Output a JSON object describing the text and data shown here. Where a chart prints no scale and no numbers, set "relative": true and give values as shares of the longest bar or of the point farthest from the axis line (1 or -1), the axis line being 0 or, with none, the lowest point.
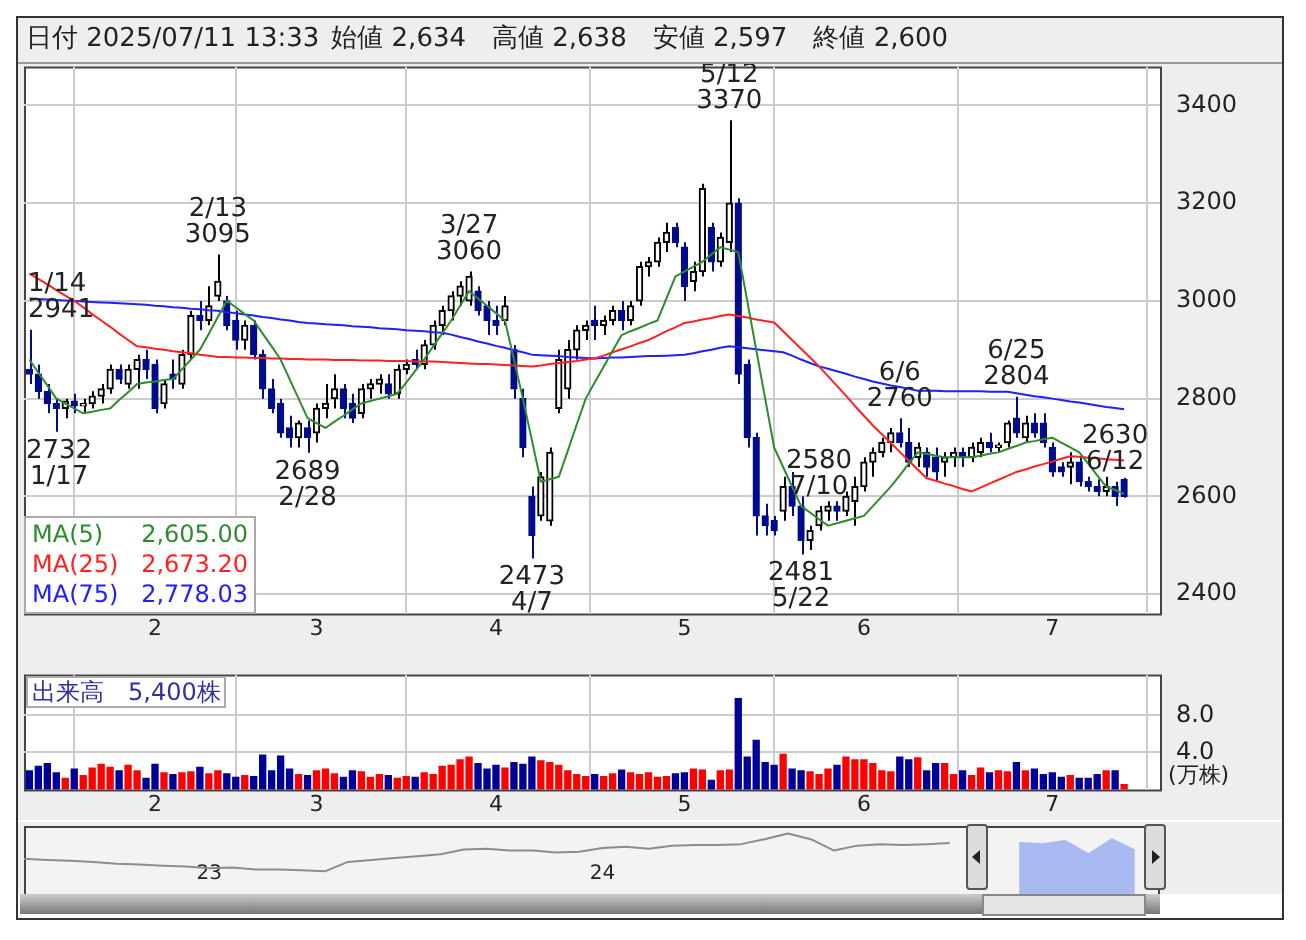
{
  "chart_data": [
    {
      "type": "candlestick",
      "title": "日付 2025/07/11 13:33",
      "subtitle": "始値 2,634　高値 2,638　安値 2,597　終値 2,600",
      "categories": [
        null,
        null,
        null,
        null,
        null,
        null,
        null,
        null,
        null,
        null,
        null,
        null,
        null,
        null,
        "2",
        null,
        null,
        null,
        null,
        null,
        null,
        null,
        null,
        null,
        null,
        null,
        null,
        null,
        null,
        null,
        null,
        null,
        "3",
        null,
        null,
        null,
        null,
        null,
        null,
        null,
        null,
        null,
        null,
        null,
        null,
        null,
        null,
        null,
        null,
        null,
        null,
        null,
        "4",
        null,
        null,
        null,
        null,
        null,
        null,
        null,
        null,
        null,
        null,
        null,
        null,
        null,
        null,
        null,
        null,
        null,
        null,
        null,
        null,
        "5",
        null,
        null,
        null,
        null,
        null,
        null,
        null,
        null,
        null,
        null,
        null,
        null,
        null,
        null,
        null,
        null,
        null,
        null,
        null,
        "6",
        null,
        null,
        null,
        null,
        null,
        null,
        null,
        null,
        null,
        null,
        null,
        null,
        null,
        null,
        null,
        null,
        null,
        null,
        null,
        null,
        "7",
        null,
        null,
        null,
        null,
        null,
        null,
        null,
        null
      ],
      "ohlc": [
        [
          2860,
          2941,
          2830,
          2850
        ],
        [
          2850,
          2870,
          2800,
          2815
        ],
        [
          2815,
          2830,
          2770,
          2790
        ],
        [
          2790,
          2800,
          2732,
          2780
        ],
        [
          2780,
          2800,
          2760,
          2795
        ],
        [
          2795,
          2810,
          2770,
          2785
        ],
        [
          2785,
          2800,
          2770,
          2790
        ],
        [
          2790,
          2815,
          2780,
          2805
        ],
        [
          2805,
          2830,
          2790,
          2820
        ],
        [
          2820,
          2870,
          2810,
          2860
        ],
        [
          2860,
          2870,
          2830,
          2840
        ],
        [
          2830,
          2870,
          2820,
          2860
        ],
        [
          2860,
          2890,
          2820,
          2880
        ],
        [
          2880,
          2900,
          2840,
          2860
        ],
        [
          2870,
          2880,
          2770,
          2780
        ],
        [
          2790,
          2840,
          2780,
          2830
        ],
        [
          2850,
          2880,
          2820,
          2840
        ],
        [
          2830,
          2900,
          2820,
          2890
        ],
        [
          2890,
          2980,
          2880,
          2970
        ],
        [
          2970,
          3000,
          2940,
          2960
        ],
        [
          2960,
          3030,
          2950,
          2990
        ],
        [
          3010,
          3095,
          3000,
          3040
        ],
        [
          3000,
          3010,
          2940,
          2950
        ],
        [
          2960,
          2980,
          2900,
          2920
        ],
        [
          2920,
          2960,
          2900,
          2950
        ],
        [
          2950,
          2960,
          2880,
          2890
        ],
        [
          2890,
          2900,
          2800,
          2820
        ],
        [
          2820,
          2840,
          2770,
          2780
        ],
        [
          2790,
          2800,
          2720,
          2730
        ],
        [
          2740,
          2765,
          2700,
          2720
        ],
        [
          2720,
          2755,
          2700,
          2750
        ],
        [
          2740,
          2755,
          2689,
          2720
        ],
        [
          2730,
          2790,
          2710,
          2780
        ],
        [
          2780,
          2830,
          2760,
          2790
        ],
        [
          2800,
          2850,
          2780,
          2820
        ],
        [
          2820,
          2830,
          2760,
          2780
        ],
        [
          2790,
          2810,
          2750,
          2760
        ],
        [
          2770,
          2830,
          2760,
          2820
        ],
        [
          2820,
          2840,
          2800,
          2830
        ],
        [
          2830,
          2850,
          2810,
          2840
        ],
        [
          2830,
          2850,
          2800,
          2810
        ],
        [
          2810,
          2870,
          2800,
          2860
        ],
        [
          2860,
          2880,
          2850,
          2870
        ],
        [
          2880,
          2900,
          2860,
          2870
        ],
        [
          2870,
          2920,
          2860,
          2910
        ],
        [
          2910,
          2960,
          2900,
          2950
        ],
        [
          2950,
          2990,
          2930,
          2980
        ],
        [
          2980,
          3020,
          2960,
          3010
        ],
        [
          3010,
          3040,
          2990,
          3030
        ],
        [
          3000,
          3060,
          2990,
          3050
        ],
        [
          3020,
          3030,
          2970,
          2980
        ],
        [
          2990,
          3000,
          2930,
          2960
        ],
        [
          2960,
          2990,
          2930,
          2950
        ],
        [
          2960,
          3010,
          2950,
          2990
        ],
        [
          2900,
          2910,
          2800,
          2820
        ],
        [
          2800,
          2820,
          2680,
          2700
        ],
        [
          2600,
          2620,
          2473,
          2520
        ],
        [
          2560,
          2650,
          2550,
          2640
        ],
        [
          2550,
          2700,
          2540,
          2690
        ],
        [
          2780,
          2900,
          2770,
          2880
        ],
        [
          2820,
          2920,
          2800,
          2900
        ],
        [
          2900,
          2950,
          2880,
          2940
        ],
        [
          2940,
          2960,
          2920,
          2950
        ],
        [
          2960,
          2990,
          2920,
          2950
        ],
        [
          2950,
          2970,
          2930,
          2960
        ],
        [
          2960,
          2990,
          2950,
          2980
        ],
        [
          2980,
          3000,
          2940,
          2960
        ],
        [
          2960,
          3000,
          2950,
          2990
        ],
        [
          3000,
          3080,
          2990,
          3070
        ],
        [
          3070,
          3090,
          3050,
          3080
        ],
        [
          3080,
          3130,
          3070,
          3120
        ],
        [
          3120,
          3160,
          3100,
          3140
        ],
        [
          3150,
          3160,
          3110,
          3120
        ],
        [
          3110,
          3120,
          3000,
          3030
        ],
        [
          3040,
          3080,
          3020,
          3060
        ],
        [
          3060,
          3240,
          3050,
          3230
        ],
        [
          3150,
          3160,
          3060,
          3080
        ],
        [
          3080,
          3140,
          3070,
          3130
        ],
        [
          3120,
          3370,
          3100,
          3200
        ],
        [
          3200,
          3210,
          2830,
          2850
        ],
        [
          2870,
          2880,
          2700,
          2720
        ],
        [
          2720,
          2730,
          2520,
          2560
        ],
        [
          2560,
          2585,
          2520,
          2540
        ],
        [
          2550,
          2560,
          2520,
          2530
        ],
        [
          2570,
          2640,
          2550,
          2620
        ],
        [
          2620,
          2650,
          2560,
          2580
        ],
        [
          2580,
          2600,
          2481,
          2510
        ],
        [
          2510,
          2540,
          2490,
          2530
        ],
        [
          2540,
          2580,
          2530,
          2570
        ],
        [
          2570,
          2590,
          2550,
          2580
        ],
        [
          2580,
          2590,
          2550,
          2570
        ],
        [
          2570,
          2610,
          2560,
          2600
        ],
        [
          2590,
          2640,
          2540,
          2620
        ],
        [
          2620,
          2680,
          2610,
          2670
        ],
        [
          2670,
          2700,
          2640,
          2690
        ],
        [
          2690,
          2720,
          2680,
          2710
        ],
        [
          2710,
          2740,
          2690,
          2730
        ],
        [
          2730,
          2760,
          2700,
          2710
        ],
        [
          2710,
          2740,
          2660,
          2670
        ],
        [
          2680,
          2710,
          2660,
          2700
        ],
        [
          2690,
          2700,
          2640,
          2660
        ],
        [
          2680,
          2700,
          2630,
          2650
        ],
        [
          2670,
          2690,
          2640,
          2680
        ],
        [
          2680,
          2700,
          2660,
          2690
        ],
        [
          2690,
          2700,
          2660,
          2680
        ],
        [
          2680,
          2710,
          2670,
          2700
        ],
        [
          2690,
          2720,
          2680,
          2710
        ],
        [
          2710,
          2730,
          2690,
          2700
        ],
        [
          2700,
          2710,
          2690,
          2705
        ],
        [
          2710,
          2755,
          2700,
          2750
        ],
        [
          2760,
          2804,
          2720,
          2730
        ],
        [
          2720,
          2765,
          2710,
          2750
        ],
        [
          2750,
          2770,
          2720,
          2730
        ],
        [
          2750,
          2770,
          2700,
          2710
        ],
        [
          2700,
          2710,
          2640,
          2650
        ],
        [
          2660,
          2670,
          2640,
          2650
        ],
        [
          2660,
          2690,
          2625,
          2670
        ],
        [
          2670,
          2680,
          2620,
          2630
        ],
        [
          2630,
          2640,
          2610,
          2620
        ],
        [
          2620,
          2635,
          2600,
          2610
        ],
        [
          2610,
          2640,
          2600,
          2620
        ],
        [
          2620,
          2630,
          2580,
          2600
        ],
        [
          2634,
          2638,
          2597,
          2600
        ]
      ],
      "series": [
        {
          "type": "line",
          "name": "MA(5)",
          "color": "#2e8b2e",
          "values": [
            2880,
            2853,
            2827,
            2800,
            2790,
            2780,
            2770,
            2773,
            2777,
            2780,
            2797,
            2813,
            2830,
            2833,
            2835,
            2838,
            2840,
            2860,
            2880,
            2900,
            2933,
            2967,
            3000,
            2987,
            2973,
            2960,
            2933,
            2907,
            2880,
            2840,
            2800,
            2760,
            2750,
            2740,
            2753,
            2765,
            2778,
            2790,
            2795,
            2800,
            2805,
            2810,
            2833,
            2857,
            2880,
            2907,
            2933,
            2960,
            2990,
            3020,
            3005,
            2990,
            2975,
            2960,
            2880,
            2800,
            2715,
            2630,
            2635,
            2640,
            2693,
            2747,
            2800,
            2833,
            2865,
            2898,
            2930,
            2938,
            2945,
            2953,
            2960,
            3005,
            3050,
            3060,
            3070,
            3080,
            3095,
            3110,
            3105,
            3100,
            3000,
            2900,
            2800,
            2700,
            2660,
            2620,
            2580,
            2567,
            2553,
            2540,
            2545,
            2550,
            2555,
            2560,
            2580,
            2600,
            2620,
            2643,
            2667,
            2690,
            2687,
            2683,
            2680,
            2680,
            2680,
            2680,
            2683,
            2687,
            2690,
            2697,
            2703,
            2710,
            2713,
            2717,
            2720,
            2710,
            2700,
            2690,
            2667,
            2643,
            2620,
            2613,
            2605
          ]
        },
        {
          "type": "line",
          "name": "MA(25)",
          "color": "#ff2020",
          "values": [
            3056,
            3045,
            3034,
            3022,
            3011,
            3000,
            2987,
            2973,
            2960,
            2947,
            2933,
            2920,
            2907,
            2905,
            2902,
            2900,
            2897,
            2895,
            2893,
            2890,
            2888,
            2885,
            2885,
            2884,
            2884,
            2883,
            2883,
            2882,
            2882,
            2881,
            2881,
            2880,
            2880,
            2880,
            2879,
            2879,
            2879,
            2878,
            2878,
            2878,
            2877,
            2877,
            2877,
            2876,
            2876,
            2876,
            2875,
            2874,
            2873,
            2872,
            2871,
            2871,
            2870,
            2869,
            2868,
            2867,
            2866,
            2868,
            2871,
            2873,
            2875,
            2877,
            2880,
            2882,
            2888,
            2895,
            2901,
            2907,
            2914,
            2920,
            2929,
            2938,
            2946,
            2955,
            2958,
            2962,
            2965,
            2969,
            2972,
            2969,
            2966,
            2962,
            2959,
            2956,
            2938,
            2920,
            2902,
            2884,
            2866,
            2846,
            2826,
            2806,
            2785,
            2765,
            2745,
            2727,
            2709,
            2691,
            2673,
            2655,
            2637,
            2632,
            2626,
            2621,
            2615,
            2610,
            2618,
            2626,
            2634,
            2642,
            2650,
            2655,
            2661,
            2666,
            2671,
            2677,
            2682,
            2681,
            2679,
            2678,
            2676,
            2675,
            2673.2
          ]
        },
        {
          "type": "line",
          "name": "MA(75)",
          "color": "#2020ff",
          "values": [
            3005,
            3004,
            3003,
            3002,
            3001,
            3000,
            2999,
            2998,
            2997,
            2996,
            2995,
            2994,
            2993,
            2992,
            2990,
            2989,
            2987,
            2986,
            2984,
            2983,
            2981,
            2980,
            2977,
            2975,
            2972,
            2970,
            2967,
            2965,
            2962,
            2960,
            2957,
            2955,
            2954,
            2952,
            2951,
            2950,
            2948,
            2947,
            2946,
            2944,
            2943,
            2942,
            2940,
            2939,
            2938,
            2936,
            2935,
            2931,
            2926,
            2922,
            2917,
            2913,
            2908,
            2904,
            2899,
            2895,
            2890,
            2889,
            2888,
            2887,
            2885,
            2884,
            2883,
            2882,
            2883,
            2884,
            2884,
            2885,
            2886,
            2887,
            2887,
            2888,
            2889,
            2890,
            2893,
            2897,
            2900,
            2904,
            2907,
            2905,
            2903,
            2901,
            2899,
            2897,
            2895,
            2888,
            2880,
            2873,
            2866,
            2861,
            2856,
            2851,
            2845,
            2840,
            2835,
            2831,
            2827,
            2824,
            2820,
            2816,
            2816,
            2816,
            2815,
            2815,
            2815,
            2815,
            2815,
            2814,
            2814,
            2814,
            2811,
            2808,
            2805,
            2803,
            2800,
            2797,
            2794,
            2792,
            2789,
            2786,
            2783,
            2781,
            2778.03
          ]
        }
      ],
      "annotations": [
        "1/14\n2941",
        {
          "text": "2732\n1/17",
          "y": 2732
        },
        {
          "text": "2/13\n3095",
          "y": 3095
        },
        {
          "text": "2689\n2/28",
          "y": 2689
        },
        {
          "text": "3/27\n3060",
          "y": 3060
        },
        {
          "text": "2473\n4/7",
          "y": 2473
        },
        {
          "text": "5/12\n3370",
          "y": 3370
        },
        {
          "text": "2481\n5/22",
          "y": 2481
        },
        {
          "text": "6/6\n2760",
          "y": 2760
        },
        {
          "text": "2630\n6/12",
          "y": 2630
        },
        {
          "text": "6/25\n2804",
          "y": 2804
        },
        {
          "text": "2580\n7/10",
          "y": 2580
        },
        "2,605.00",
        "2,673.20",
        "2,778.03"
      ],
      "ylim": [
        2360,
        3480
      ],
      "yticks": [
        2400,
        2600,
        2800,
        3000,
        3200,
        3400
      ],
      "grid": true,
      "legend": "bottom left"
    },
    {
      "type": "bar",
      "title": "出来高　5,400株",
      "ylabel": "(万株)",
      "categories": [
        null,
        null,
        null,
        null,
        null,
        null,
        null,
        null,
        null,
        null,
        null,
        null,
        null,
        null,
        "2",
        null,
        null,
        null,
        null,
        null,
        null,
        null,
        null,
        null,
        null,
        null,
        null,
        null,
        null,
        null,
        null,
        null,
        "3",
        null,
        null,
        null,
        null,
        null,
        null,
        null,
        null,
        null,
        null,
        null,
        null,
        null,
        null,
        null,
        null,
        null,
        null,
        null,
        "4",
        null,
        null,
        null,
        null,
        null,
        null,
        null,
        null,
        null,
        null,
        null,
        null,
        null,
        null,
        null,
        null,
        null,
        null,
        null,
        null,
        "5",
        null,
        null,
        null,
        null,
        null,
        null,
        null,
        null,
        null,
        null,
        null,
        null,
        null,
        null,
        null,
        null,
        null,
        null,
        null,
        "6",
        null,
        null,
        null,
        null,
        null,
        null,
        null,
        null,
        null,
        null,
        null,
        null,
        null,
        null,
        null,
        null,
        null,
        null,
        null,
        null,
        "7",
        null,
        null,
        null,
        null,
        null,
        null,
        null,
        null
      ],
      "values": [
        2.0,
        2.5,
        2.8,
        1.8,
        1.2,
        2.2,
        1.5,
        2.3,
        2.7,
        2.4,
        2.0,
        2.6,
        2.0,
        1.2,
        2.7,
        1.8,
        1.6,
        1.8,
        1.9,
        2.4,
        1.7,
        2.0,
        1.7,
        1.3,
        1.5,
        1.4,
        3.7,
        2.0,
        3.6,
        2.2,
        1.6,
        1.5,
        2.0,
        2.2,
        1.7,
        1.3,
        2.0,
        1.9,
        1.3,
        1.6,
        1.5,
        1.2,
        1.4,
        1.3,
        1.8,
        1.6,
        2.5,
        2.6,
        3.2,
        3.5,
        2.8,
        2.2,
        2.6,
        2.3,
        2.9,
        2.7,
        3.5,
        3.1,
        2.9,
        2.6,
        2.0,
        1.6,
        1.4,
        1.6,
        1.4,
        1.7,
        2.1,
        1.8,
        1.6,
        1.8,
        1.3,
        1.4,
        1.7,
        1.8,
        2.2,
        2.1,
        1.0,
        2.0,
        2.1,
        9.8,
        3.5,
        5.3,
        2.9,
        2.6,
        3.8,
        2.2,
        2.0,
        1.9,
        1.6,
        2.2,
        2.6,
        3.5,
        3.2,
        3.2,
        2.8,
        2.0,
        1.9,
        3.5,
        3.2,
        3.4,
        2.0,
        2.8,
        2.8,
        1.6,
        2.0,
        1.5,
        2.3,
        1.8,
        2.0,
        1.9,
        2.9,
        2.0,
        2.2,
        1.6,
        1.8,
        1.3,
        1.5,
        1.2,
        1.2,
        1.6,
        2.0,
        2.0,
        0.54
      ],
      "colors": [
        "#000099",
        "#000099",
        "#000099",
        "#000099",
        "#ff0000",
        "#000099",
        "#ff0000",
        "#ff0000",
        "#ff0000",
        "#ff0000",
        "#000099",
        "#ff0000",
        "#ff0000",
        "#000099",
        "#000099",
        "#ff0000",
        "#000099",
        "#ff0000",
        "#ff0000",
        "#000099",
        "#ff0000",
        "#ff0000",
        "#000099",
        "#000099",
        "#ff0000",
        "#000099",
        "#000099",
        "#000099",
        "#000099",
        "#000099",
        "#ff0000",
        "#000099",
        "#ff0000",
        "#ff0000",
        "#ff0000",
        "#000099",
        "#000099",
        "#ff0000",
        "#ff0000",
        "#ff0000",
        "#000099",
        "#ff0000",
        "#ff0000",
        "#000099",
        "#ff0000",
        "#ff0000",
        "#ff0000",
        "#ff0000",
        "#ff0000",
        "#ff0000",
        "#000099",
        "#000099",
        "#000099",
        "#ff0000",
        "#000099",
        "#000099",
        "#000099",
        "#ff0000",
        "#ff0000",
        "#ff0000",
        "#ff0000",
        "#ff0000",
        "#ff0000",
        "#000099",
        "#ff0000",
        "#ff0000",
        "#000099",
        "#ff0000",
        "#ff0000",
        "#ff0000",
        "#ff0000",
        "#ff0000",
        "#000099",
        "#000099",
        "#ff0000",
        "#ff0000",
        "#000099",
        "#ff0000",
        "#ff0000",
        "#000099",
        "#000099",
        "#000099",
        "#000099",
        "#000099",
        "#ff0000",
        "#000099",
        "#000099",
        "#ff0000",
        "#ff0000",
        "#ff0000",
        "#000099",
        "#ff0000",
        "#ff0000",
        "#ff0000",
        "#ff0000",
        "#ff0000",
        "#ff0000",
        "#000099",
        "#000099",
        "#ff0000",
        "#000099",
        "#000099",
        "#ff0000",
        "#ff0000",
        "#000099",
        "#ff0000",
        "#ff0000",
        "#000099",
        "#ff0000",
        "#ff0000",
        "#000099",
        "#ff0000",
        "#000099",
        "#000099",
        "#000099",
        "#000099",
        "#ff0000",
        "#000099",
        "#000099",
        "#000099",
        "#ff0000",
        "#000099",
        "#ff0000"
      ],
      "ylim": [
        0,
        12.4
      ],
      "yticks": [
        {
          "value": 4,
          "label": "4.0"
        },
        {
          "value": 8,
          "label": "8.0"
        }
      ],
      "grid": true
    },
    {
      "type": "line",
      "relative": true,
      "tick_labels": "x",
      "categories": [
        null,
        null,
        null,
        null,
        null,
        null,
        null,
        null,
        "23",
        null,
        null,
        null,
        null,
        null,
        null,
        null,
        null,
        null,
        null,
        null,
        null,
        null,
        null,
        null,
        null,
        "24",
        null,
        null,
        null,
        null,
        null,
        null,
        null,
        null,
        null,
        null,
        null,
        null,
        null,
        null,
        null,
        null,
        null,
        null,
        null,
        null,
        null,
        null,
        null,
        null
      ],
      "series": [
        {
          "color": "#8c8c8c",
          "values": [
            0.33,
            0.3,
            0.28,
            0.25,
            0.2,
            0.18,
            0.15,
            0.13,
            0.08,
            0.1,
            0.05,
            0.05,
            0.03,
            0,
            0.25,
            0.3,
            0.35,
            0.4,
            0.45,
            0.58,
            0.6,
            0.55,
            0.55,
            0.5,
            0.52,
            0.62,
            0.65,
            0.6,
            0.68,
            0.7,
            0.7,
            0.72,
            0.85,
            1,
            0.85,
            0.55,
            0.68,
            0.72,
            0.7,
            0.72,
            0.75,
            null,
            null,
            null,
            null,
            null,
            null,
            null,
            null,
            null
          ]
        },
        {
          "type": "area",
          "color": "#a9b9f2",
          "values": [
            null,
            null,
            null,
            null,
            null,
            null,
            null,
            null,
            null,
            null,
            null,
            null,
            null,
            null,
            null,
            null,
            null,
            null,
            null,
            null,
            null,
            null,
            null,
            null,
            null,
            null,
            null,
            null,
            null,
            null,
            null,
            null,
            null,
            null,
            null,
            null,
            null,
            null,
            null,
            null,
            null,
            null,
            null,
            0.75,
            0.72,
            0.8,
            0.45,
            0.85,
            0.55,
            null
          ]
        }
      ]
    }
  ]
}
